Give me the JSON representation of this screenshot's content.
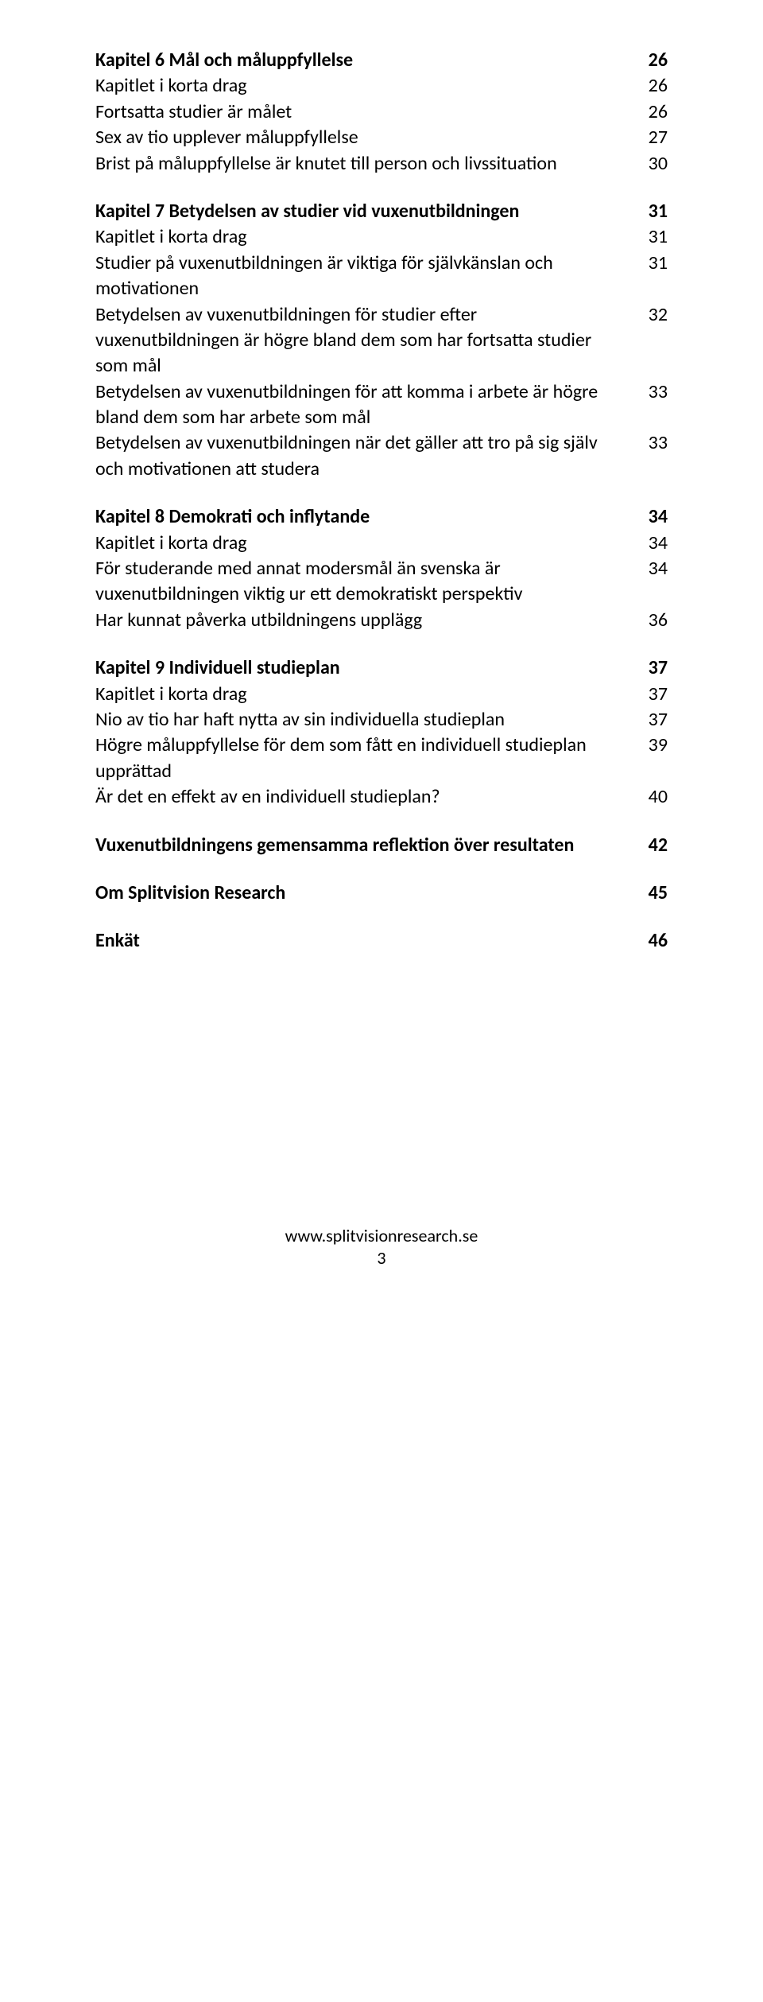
{
  "sections": [
    {
      "rows": [
        {
          "label": "Kapitel 6 Mål och måluppfyllelse",
          "page": "26",
          "bold": true
        },
        {
          "label": "Kapitlet i korta drag",
          "page": "26",
          "bold": false
        },
        {
          "label": "Fortsatta studier är målet",
          "page": "26",
          "bold": false
        },
        {
          "label": "Sex av tio upplever måluppfyllelse",
          "page": "27",
          "bold": false
        },
        {
          "label": "Brist på måluppfyllelse är knutet till person och livssituation",
          "page": "30",
          "bold": false
        }
      ]
    },
    {
      "rows": [
        {
          "label": "Kapitel 7 Betydelsen av studier vid vuxenutbildningen",
          "page": "31",
          "bold": true
        },
        {
          "label": "Kapitlet i korta drag",
          "page": "31",
          "bold": false
        },
        {
          "label": "Studier på vuxenutbildningen är viktiga för självkänslan och motivationen",
          "page": "31",
          "bold": false
        },
        {
          "label": "Betydelsen av vuxenutbildningen för studier efter vuxenutbildningen är högre bland dem som har fortsatta studier som mål",
          "page": "32",
          "bold": false
        },
        {
          "label": "Betydelsen av vuxenutbildningen för att komma i arbete är högre bland dem som har arbete som mål",
          "page": "33",
          "bold": false
        },
        {
          "label": "Betydelsen av vuxenutbildningen när det gäller att tro på sig själv och motivationen att studera",
          "page": "33",
          "bold": false
        }
      ]
    },
    {
      "rows": [
        {
          "label": "Kapitel 8 Demokrati och inflytande",
          "page": "34",
          "bold": true
        },
        {
          "label": "Kapitlet i korta drag",
          "page": "34",
          "bold": false
        },
        {
          "label": "För studerande med annat modersmål än svenska är vuxenutbildningen viktig ur ett demokratiskt perspektiv",
          "page": "34",
          "bold": false
        },
        {
          "label": "Har kunnat påverka utbildningens upplägg",
          "page": "36",
          "bold": false
        }
      ]
    },
    {
      "rows": [
        {
          "label": "Kapitel 9 Individuell studieplan",
          "page": "37",
          "bold": true
        },
        {
          "label": "Kapitlet i korta drag",
          "page": "37",
          "bold": false
        },
        {
          "label": "Nio av tio har haft nytta av sin individuella studieplan",
          "page": "37",
          "bold": false
        },
        {
          "label": "Högre måluppfyllelse för dem som fått en individuell studieplan upprättad",
          "page": "39",
          "bold": false
        },
        {
          "label": "Är det en effekt av en individuell studieplan?",
          "page": "40",
          "bold": false
        }
      ]
    },
    {
      "rows": [
        {
          "label": "Vuxenutbildningens gemensamma reflektion över resultaten",
          "page": "42",
          "bold": true
        }
      ]
    },
    {
      "rows": [
        {
          "label": "Om Splitvision Research",
          "page": "45",
          "bold": true
        }
      ]
    },
    {
      "rows": [
        {
          "label": "Enkät",
          "page": "46",
          "bold": true
        }
      ]
    }
  ],
  "footer": {
    "url": "www.splitvisionresearch.se",
    "pagenum": "3"
  }
}
